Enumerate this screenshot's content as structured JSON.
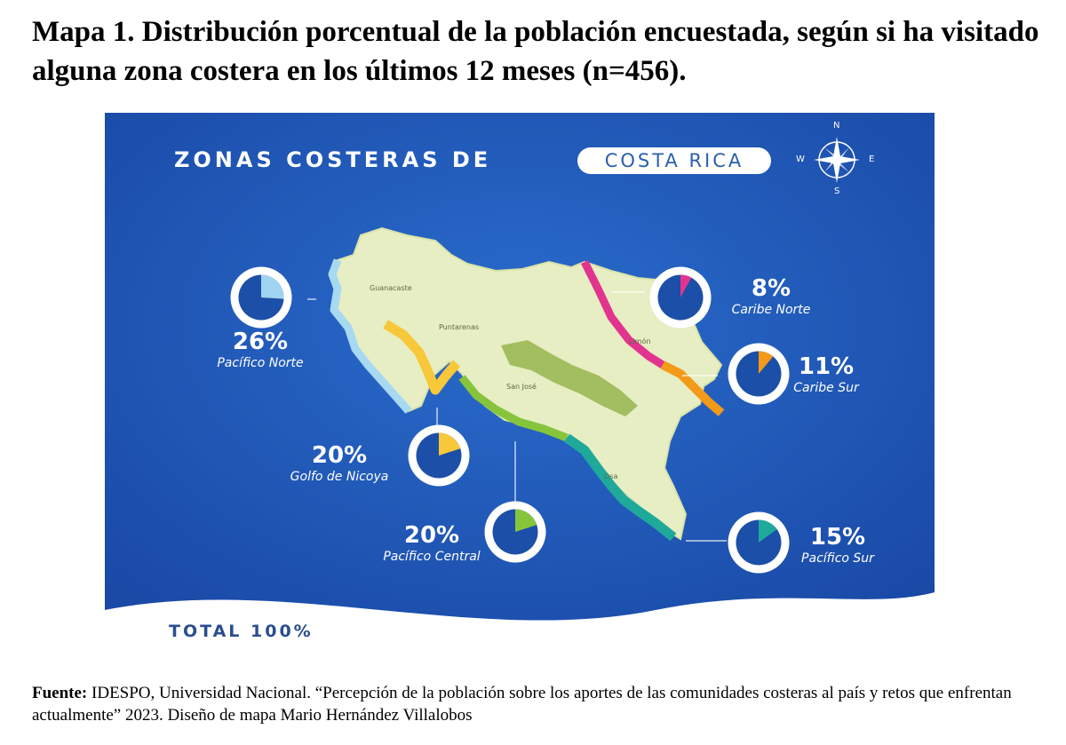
{
  "title": "Mapa 1. Distribución porcentual de la población encuestada, según si ha visitado alguna zona costera en los últimos 12 meses (n=456).",
  "banner": {
    "prefix": "ZONAS COSTERAS DE",
    "country": "COSTA RICA"
  },
  "compass": {
    "n": "N",
    "s": "S",
    "e": "E",
    "w": "W",
    "icon": "compass-rose-icon"
  },
  "places": [
    "Guanacaste",
    "Puntarenas",
    "San José",
    "Limón",
    "Osa"
  ],
  "zones": [
    {
      "name": "Pacífico Norte",
      "pct_label": "26%",
      "value": 26,
      "color": "#9fd3f0"
    },
    {
      "name": "Caribe Norte",
      "pct_label": "8%",
      "value": 8,
      "color": "#e2348f"
    },
    {
      "name": "Caribe Sur",
      "pct_label": "11%",
      "value": 11,
      "color": "#f39a18"
    },
    {
      "name": "Golfo de Nicoya",
      "pct_label": "20%",
      "value": 20,
      "color": "#f6c83a"
    },
    {
      "name": "Pacífico Central",
      "pct_label": "20%",
      "value": 20,
      "color": "#86c43b"
    },
    {
      "name": "Pacífico Sur",
      "pct_label": "15%",
      "value": 15,
      "color": "#1fa99a"
    }
  ],
  "total": "TOTAL 100%",
  "source": {
    "label": "Fuente:",
    "text": "IDESPO, Universidad Nacional. “Percepción de la población sobre los aportes de las comunidades costeras al país y retos que enfrentan actualmente” 2023.   Diseño de mapa Mario Hernández Villalobos"
  },
  "colors": {
    "ocean": "#1e58b8",
    "land": "#e8efc2",
    "donut_track": "#1c4fa8"
  }
}
